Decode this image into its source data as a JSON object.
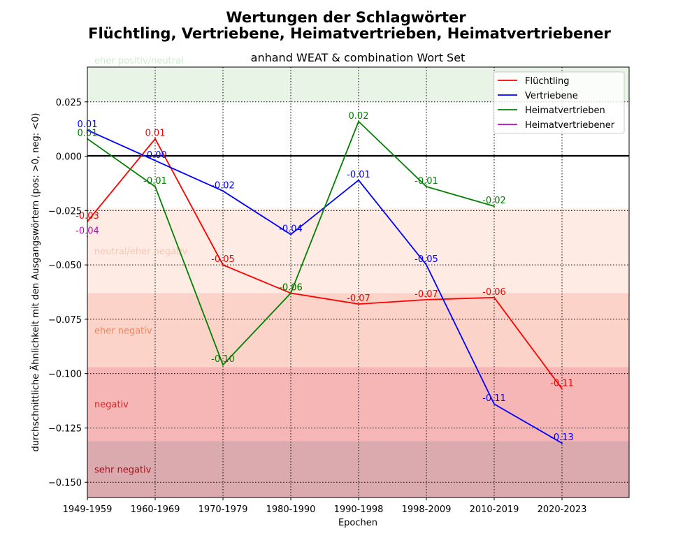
{
  "chart_data": {
    "type": "line",
    "title_line1": "Wertungen der Schlagwörter",
    "title_line2": "Flüchtling, Vertriebene, Heimatvertrieben, Heimatvertriebener",
    "subtitle": "anhand WEAT & combination Wort Set",
    "xlabel": "Epochen",
    "ylabel": "durchschnittliche Ähnlichkeit mit den Ausgangswörtern (pos: >0, neg: <0)",
    "categories": [
      "1949-1959",
      "1960-1969",
      "1970-1979",
      "1980-1990",
      "1990-1998",
      "1998-2009",
      "2010-2019",
      "2020-2023"
    ],
    "ylim": [
      -0.157,
      0.041
    ],
    "yticks": [
      0.025,
      0.0,
      -0.025,
      -0.05,
      -0.075,
      -0.1,
      -0.125,
      -0.15
    ],
    "ytick_labels": [
      "0.025",
      "0.000",
      "−0.025",
      "−0.050",
      "−0.075",
      "−0.100",
      "−0.125",
      "−0.150"
    ],
    "grid": true,
    "legend_position": "top-right",
    "bands": [
      {
        "label": "eher positiv/neutral",
        "from": 0.025,
        "to": 0.041,
        "color": "#e8f5e6",
        "text_color": "#d2ecd0"
      },
      {
        "label": "neutral/eher negativ",
        "from": -0.063,
        "to": -0.024,
        "color": "#fdebe4",
        "text_color": "#f7c6b3"
      },
      {
        "label": "eher negativ",
        "from": -0.097,
        "to": -0.063,
        "color": "#fcd3c8",
        "text_color": "#f0855e"
      },
      {
        "label": "negativ",
        "from": -0.131,
        "to": -0.097,
        "color": "#f6b6b5",
        "text_color": "#d62728"
      },
      {
        "label": "sehr negativ",
        "from": -0.157,
        "to": -0.131,
        "color": "#dbaaae",
        "text_color": "#a50f15"
      }
    ],
    "series": [
      {
        "name": "Flüchtling",
        "color": "#ff0000",
        "values": [
          -0.03,
          0.008,
          -0.05,
          -0.063,
          -0.068,
          -0.066,
          -0.065,
          -0.107
        ],
        "labels": [
          "-0.03",
          "0.01",
          "-0.05",
          "-0.06",
          "-0.07",
          "-0.07",
          "-0.06",
          "-0.11"
        ]
      },
      {
        "name": "Vertriebene",
        "color": "#0000ff",
        "values": [
          0.012,
          -0.002,
          -0.016,
          -0.036,
          -0.011,
          -0.05,
          -0.114,
          -0.132
        ],
        "labels": [
          "0.01",
          "-0.00",
          "-0.02",
          "-0.04",
          "-0.01",
          "-0.05",
          "-0.11",
          "-0.13"
        ]
      },
      {
        "name": "Heimatvertrieben",
        "color": "#008000",
        "values": [
          0.008,
          -0.014,
          -0.096,
          -0.063,
          0.016,
          -0.014,
          -0.023,
          null
        ],
        "labels": [
          "0.01",
          "-0.01",
          "-0.10",
          "-0.06",
          "0.02",
          "-0.01",
          "-0.02",
          null
        ]
      },
      {
        "name": "Heimatvertriebener",
        "color": "#bf00bf",
        "values": [
          -0.037,
          null,
          null,
          null,
          null,
          null,
          null,
          null
        ],
        "labels": [
          "-0.04",
          null,
          null,
          null,
          null,
          null,
          null,
          null
        ]
      }
    ]
  }
}
